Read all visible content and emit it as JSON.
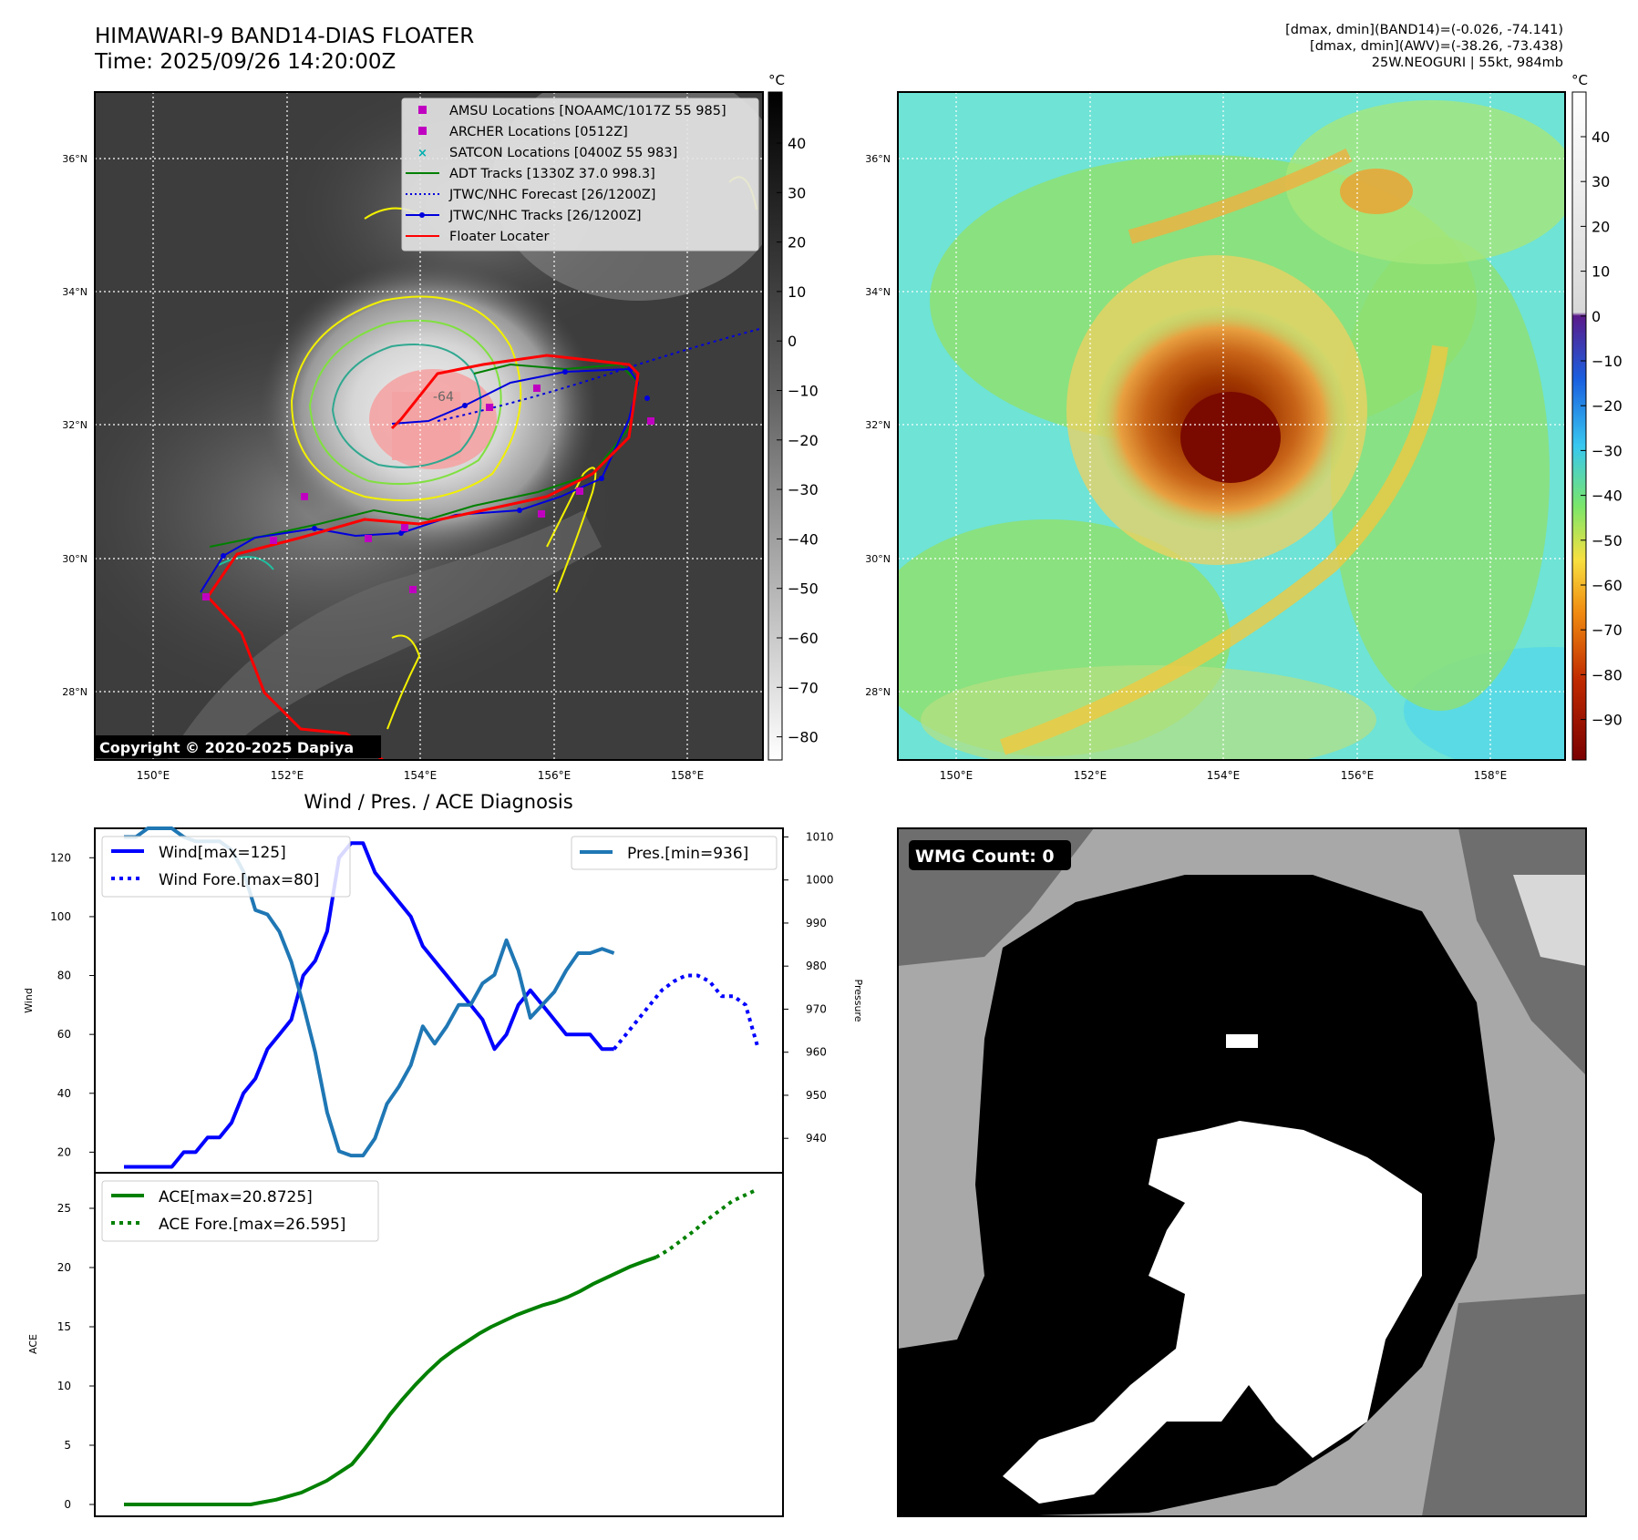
{
  "header": {
    "title_line1": "HIMAWARI-9 BAND14-DIAS FLOATER",
    "title_line2": "Time: 2025/09/26 14:20:00Z",
    "info_line1": "[dmax, dmin](BAND14)=(-0.026, -74.141)",
    "info_line2": "[dmax, dmin](AWV)=(-38.26, -73.438)",
    "info_line3": "25W.NEOGURI | 55kt, 984mb"
  },
  "ir_panel": {
    "lat_ticks": [
      "36°N",
      "34°N",
      "32°N",
      "30°N",
      "28°N"
    ],
    "lon_ticks": [
      "150°E",
      "152°E",
      "154°E",
      "156°E",
      "158°E"
    ],
    "colorbar_unit": "°C",
    "colorbar_ticks": [
      "40",
      "30",
      "20",
      "10",
      "0",
      "−10",
      "−20",
      "−30",
      "−40",
      "−50",
      "−60",
      "−70",
      "−80"
    ],
    "copyright": "Copyright © 2020-2025 Dapiya",
    "label_64": "-64",
    "legend": [
      {
        "label": "AMSU Locations [NOAAMC/1017Z 55 985]",
        "color": "#c000c0",
        "marker": "square"
      },
      {
        "label": "ARCHER Locations [0512Z]",
        "color": "#c000c0",
        "marker": "square"
      },
      {
        "label": "SATCON Locations [0400Z 55 983]",
        "color": "#00b0b0",
        "marker": "x"
      },
      {
        "label": "ADT Tracks [1330Z 37.0 998.3]",
        "color": "#008000",
        "marker": "line"
      },
      {
        "label": "JTWC/NHC Forecast [26/1200Z]",
        "color": "#0000dd",
        "marker": "dotted"
      },
      {
        "label": "JTWC/NHC Tracks [26/1200Z]",
        "color": "#0000dd",
        "marker": "line-dot"
      },
      {
        "label": "Floater Locater",
        "color": "#ff0000",
        "marker": "line"
      }
    ]
  },
  "rainbow_panel": {
    "lat_ticks": [
      "36°N",
      "34°N",
      "32°N",
      "30°N",
      "28°N"
    ],
    "lon_ticks": [
      "150°E",
      "152°E",
      "154°E",
      "156°E",
      "158°E"
    ],
    "colorbar_unit": "°C",
    "colorbar_ticks": [
      "40",
      "30",
      "20",
      "10",
      "0",
      "−10",
      "−20",
      "−30",
      "−40",
      "−50",
      "−60",
      "−70",
      "−80",
      "−90"
    ]
  },
  "wind_panel": {
    "title": "Wind / Pres. / ACE Diagnosis",
    "ylabel_left": "Wind",
    "ylabel_right": "Pressure",
    "wind_ticks": [
      "120",
      "100",
      "80",
      "60",
      "40",
      "20"
    ],
    "pres_ticks": [
      "1010",
      "1000",
      "990",
      "980",
      "970",
      "960",
      "950",
      "940"
    ],
    "legend_wind": "Wind[max=125]",
    "legend_wind_fore": "Wind Fore.[max=80]",
    "legend_pres": "Pres.[min=936]"
  },
  "ace_panel": {
    "ylabel": "ACE",
    "ticks": [
      "25",
      "20",
      "15",
      "10",
      "5",
      "0"
    ],
    "legend_ace": "ACE[max=20.8725]",
    "legend_ace_fore": "ACE Fore.[max=26.595]"
  },
  "wmg_panel": {
    "badge": "WMG Count: 0"
  },
  "chart_data": [
    {
      "type": "line",
      "title": "Wind / Pres. / ACE Diagnosis",
      "ylabel": "Wind",
      "y2label": "Pressure",
      "ylim": [
        13,
        130
      ],
      "y2lim": [
        932,
        1012
      ],
      "series": [
        {
          "name": "Wind[max=125]",
          "axis": "left",
          "style": "solid",
          "color": "#0000ff",
          "values": [
            15,
            15,
            15,
            15,
            15,
            20,
            20,
            25,
            25,
            30,
            40,
            45,
            55,
            60,
            65,
            80,
            85,
            95,
            120,
            125,
            125,
            115,
            110,
            105,
            100,
            90,
            85,
            80,
            75,
            70,
            65,
            55,
            60,
            70,
            75,
            70,
            65,
            60,
            60,
            60,
            55,
            55
          ]
        },
        {
          "name": "Wind Fore.[max=80]",
          "axis": "left",
          "style": "dotted",
          "color": "#0000ff",
          "start_index": 41,
          "values": [
            55,
            60,
            65,
            70,
            75,
            78,
            80,
            80,
            78,
            73,
            73,
            70,
            56
          ]
        },
        {
          "name": "Pres.[min=936]",
          "axis": "right",
          "style": "solid",
          "color": "#1f77b4",
          "values": [
            1010,
            1010,
            1012,
            1012,
            1012,
            1010,
            1009,
            1009,
            1009,
            1007,
            1002,
            993,
            992,
            988,
            981,
            971,
            960,
            946,
            937,
            936,
            936,
            940,
            948,
            952,
            957,
            966,
            962,
            966,
            971,
            971,
            976,
            978,
            986,
            979,
            968,
            971,
            974,
            979,
            983,
            983,
            984,
            983
          ]
        }
      ]
    },
    {
      "type": "line",
      "ylabel": "ACE",
      "ylim": [
        -1,
        28
      ],
      "series": [
        {
          "name": "ACE[max=20.8725]",
          "style": "solid",
          "color": "#008000",
          "values": [
            0,
            0,
            0,
            0,
            0,
            0,
            0,
            0,
            0,
            0,
            0,
            0.2,
            0.4,
            0.7,
            1.0,
            1.5,
            2.0,
            2.7,
            3.4,
            4.7,
            6.1,
            7.6,
            8.9,
            10.1,
            11.2,
            12.2,
            13.0,
            13.7,
            14.4,
            15.0,
            15.5,
            16.0,
            16.4,
            16.8,
            17.1,
            17.5,
            18.0,
            18.6,
            19.1,
            19.6,
            20.1,
            20.5,
            20.87
          ]
        },
        {
          "name": "ACE Fore.[max=26.595]",
          "style": "dotted",
          "color": "#008000",
          "start_index": 42,
          "values": [
            20.87,
            21.5,
            22.3,
            23.1,
            24.0,
            24.8,
            25.6,
            26.1,
            26.6
          ]
        }
      ]
    }
  ]
}
